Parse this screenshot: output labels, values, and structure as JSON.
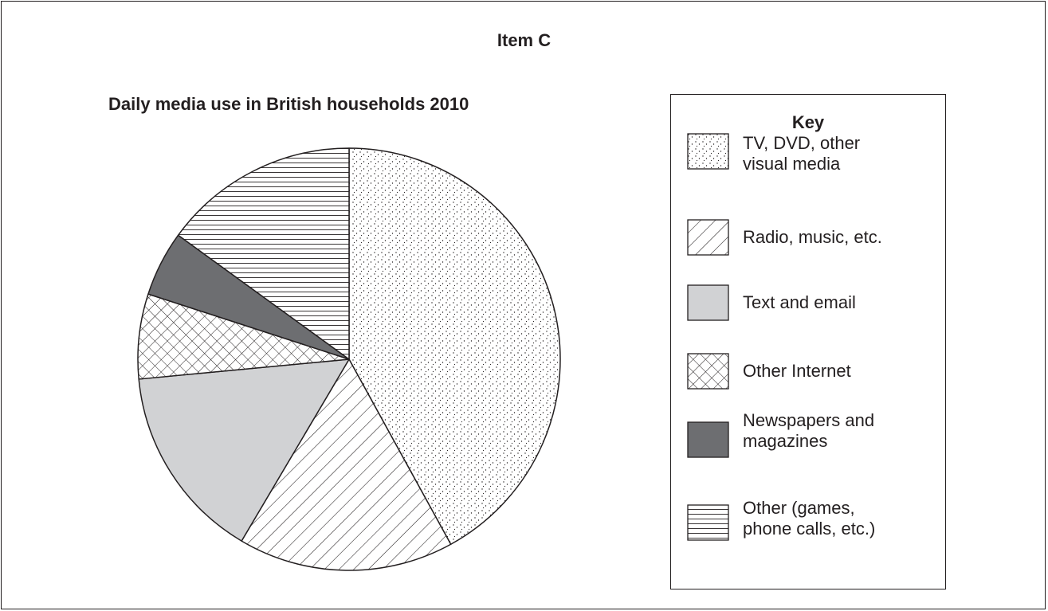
{
  "header": {
    "item_label": "Item C"
  },
  "chart_data": {
    "type": "pie",
    "title": "Daily media use in British households 2010",
    "start_angle_deg": 0,
    "direction": "clockwise",
    "slices": [
      {
        "label": "TV, DVD, other visual media",
        "value": 42,
        "pattern": "dots",
        "color": "#ffffff"
      },
      {
        "label": "Radio, music, etc.",
        "value": 16.5,
        "pattern": "diagonal",
        "color": "#ffffff"
      },
      {
        "label": "Text and email",
        "value": 15,
        "pattern": "solid",
        "color": "#d1d2d4"
      },
      {
        "label": "Other Internet",
        "value": 6.5,
        "pattern": "crosshatch",
        "color": "#ffffff"
      },
      {
        "label": "Newspapers and magazines",
        "value": 5,
        "pattern": "solid",
        "color": "#6d6e71"
      },
      {
        "label": "Other (games, phone calls, etc.)",
        "value": 15,
        "pattern": "horizontal",
        "color": "#ffffff"
      }
    ],
    "legend": {
      "title": "Key",
      "position": "right",
      "items": [
        {
          "lines": [
            "TV, DVD, other",
            "visual media"
          ]
        },
        {
          "lines": [
            "Radio, music, etc."
          ]
        },
        {
          "lines": [
            "Text and email"
          ]
        },
        {
          "lines": [
            "Other Internet"
          ]
        },
        {
          "lines": [
            "Newspapers and",
            "magazines"
          ]
        },
        {
          "lines": [
            "Other (games,",
            "phone calls, etc.)"
          ]
        }
      ]
    }
  }
}
